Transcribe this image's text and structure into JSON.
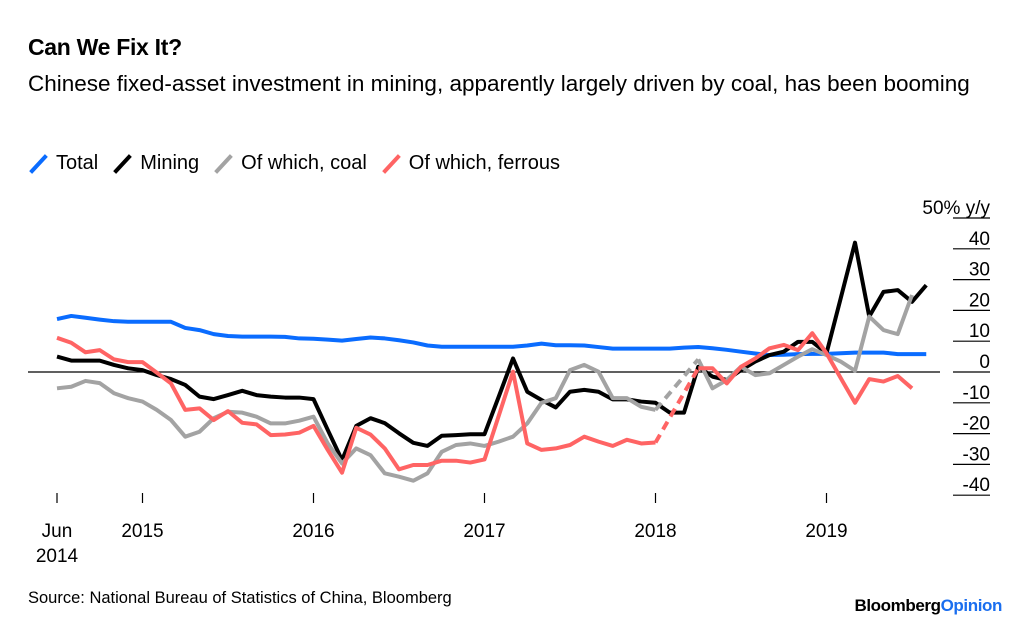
{
  "title": "Can We Fix It?",
  "subtitle": "Chinese fixed-asset investment in mining, apparently largely driven by coal, has been booming",
  "source": "Source: National Bureau of Statistics of China, Bloomberg",
  "logo": {
    "part1": "Bloomberg",
    "part2": "Opinion"
  },
  "chart_data": {
    "type": "line",
    "title": "Can We Fix It?",
    "ylabel": "% y/y",
    "ylim": [
      -40,
      50
    ],
    "yticks": [
      50,
      40,
      30,
      20,
      10,
      0,
      -10,
      -20,
      -30,
      -40
    ],
    "ytick_labels": [
      "50% y/y",
      "40",
      "30",
      "20",
      "10",
      "0",
      "-10",
      "-20",
      "-30",
      "-40"
    ],
    "xticks": [
      {
        "date": "2014-06",
        "label": [
          "Jun",
          "2014"
        ]
      },
      {
        "date": "2014-12",
        "label": [
          "2015"
        ]
      },
      {
        "date": "2015-12",
        "label": [
          "2016"
        ]
      },
      {
        "date": "2016-12",
        "label": [
          "2017"
        ]
      },
      {
        "date": "2017-12",
        "label": [
          "2018"
        ]
      },
      {
        "date": "2018-12",
        "label": [
          "2019"
        ]
      }
    ],
    "x_start": "2014-06",
    "x_end": "2019-07",
    "frequency": "monthly",
    "grid": false,
    "legend_position": "top-left",
    "gap_style": "dashed",
    "series": [
      {
        "name": "Total",
        "color": "#0a6cff",
        "values": [
          17.2,
          18.2,
          17.6,
          17,
          16.5,
          16.3,
          16.3,
          16.3,
          16.3,
          14.3,
          13.6,
          12.3,
          11.7,
          11.5,
          11.5,
          11.5,
          11.4,
          10.9,
          10.8,
          10.5,
          10.2,
          10.7,
          11.2,
          10.9,
          10.3,
          9.6,
          8.6,
          8.2,
          8.2,
          8.2,
          8.2,
          8.2,
          8.2,
          8.6,
          9.2,
          8.7,
          8.7,
          8.6,
          8.1,
          7.6,
          7.6,
          7.6,
          7.6,
          7.6,
          7.9,
          8.1,
          7.7,
          7.2,
          6.6,
          6.0,
          5.5,
          5.6,
          5.8,
          5.9,
          5.9,
          6.1,
          6.3,
          6.3,
          6.3,
          5.8,
          5.8,
          5.8
        ]
      },
      {
        "name": "Mining",
        "color": "#000000",
        "values": [
          5.0,
          3.7,
          3.7,
          3.7,
          2.3,
          1.2,
          0.6,
          -1,
          -2.3,
          -4.2,
          -8,
          -8.8,
          -7.5,
          -6.1,
          -7.5,
          -8,
          -8.3,
          -8.3,
          -8.8,
          -18.8,
          -28.6,
          -17.5,
          -15,
          -16.6,
          -19.9,
          -23,
          -24,
          -20.7,
          -20.5,
          -20.2,
          -20.2,
          -8,
          4.4,
          -6.4,
          -9.1,
          -11.5,
          -6.4,
          -5.8,
          -6.4,
          -8.9,
          -8.9,
          -9.6,
          -10,
          -13.2,
          -13.2,
          1.7,
          -1.5,
          -2.6,
          0.6,
          3.4,
          5.5,
          6.6,
          9.8,
          9.8,
          6.1,
          24,
          42,
          18,
          26,
          26.6,
          22.8,
          28.2
        ]
      },
      {
        "name": "Of which, coal",
        "color": "#a3a3a3",
        "values": [
          -5.3,
          -4.8,
          -2.9,
          -3.6,
          -6.9,
          -8.5,
          -9.6,
          -12.3,
          -15.6,
          -21,
          -19.4,
          -15,
          -12.9,
          -13.2,
          -14.5,
          -16.7,
          -16.7,
          -15.8,
          -14.5,
          -23.2,
          -29.7,
          -24.8,
          -27,
          -32.9,
          -34,
          -35.3,
          -32.9,
          -25.9,
          -23.7,
          -23.2,
          -24,
          -22.6,
          -21,
          -16.7,
          -10,
          -8.5,
          0.6,
          2.3,
          0.1,
          -8.5,
          -8.5,
          -11.3,
          -12.3,
          null,
          null,
          4.1,
          -5.3,
          -2.6,
          1.7,
          -1,
          -0.4,
          2.3,
          5,
          7.4,
          5.5,
          3.4,
          0.4,
          18,
          13.6,
          12.3,
          25,
          null
        ]
      },
      {
        "name": "Of which, ferrous",
        "color": "#ff6464",
        "values": [
          11.1,
          9.5,
          6.4,
          7.1,
          4.1,
          3.2,
          3.2,
          -0.2,
          -3.7,
          -12.3,
          -11.8,
          -15.6,
          -12.7,
          -16.5,
          -17,
          -20.5,
          -20.3,
          -19.7,
          -17.5,
          -25.3,
          -32.7,
          -18.1,
          -20.3,
          -24.8,
          -31.6,
          -30.2,
          -30.2,
          -28.8,
          -28.8,
          -29.4,
          -28.4,
          -14.2,
          0.1,
          -23.2,
          -25.3,
          -24.8,
          -23.7,
          -21,
          -22.6,
          -24,
          -22,
          -23.2,
          -22.9,
          null,
          null,
          1.2,
          1.2,
          -3.7,
          1.7,
          4.4,
          7.7,
          8.8,
          7.1,
          12.6,
          6.1,
          -2,
          -10,
          -2.3,
          -3.1,
          -1.3,
          -5.3,
          null
        ]
      }
    ]
  }
}
